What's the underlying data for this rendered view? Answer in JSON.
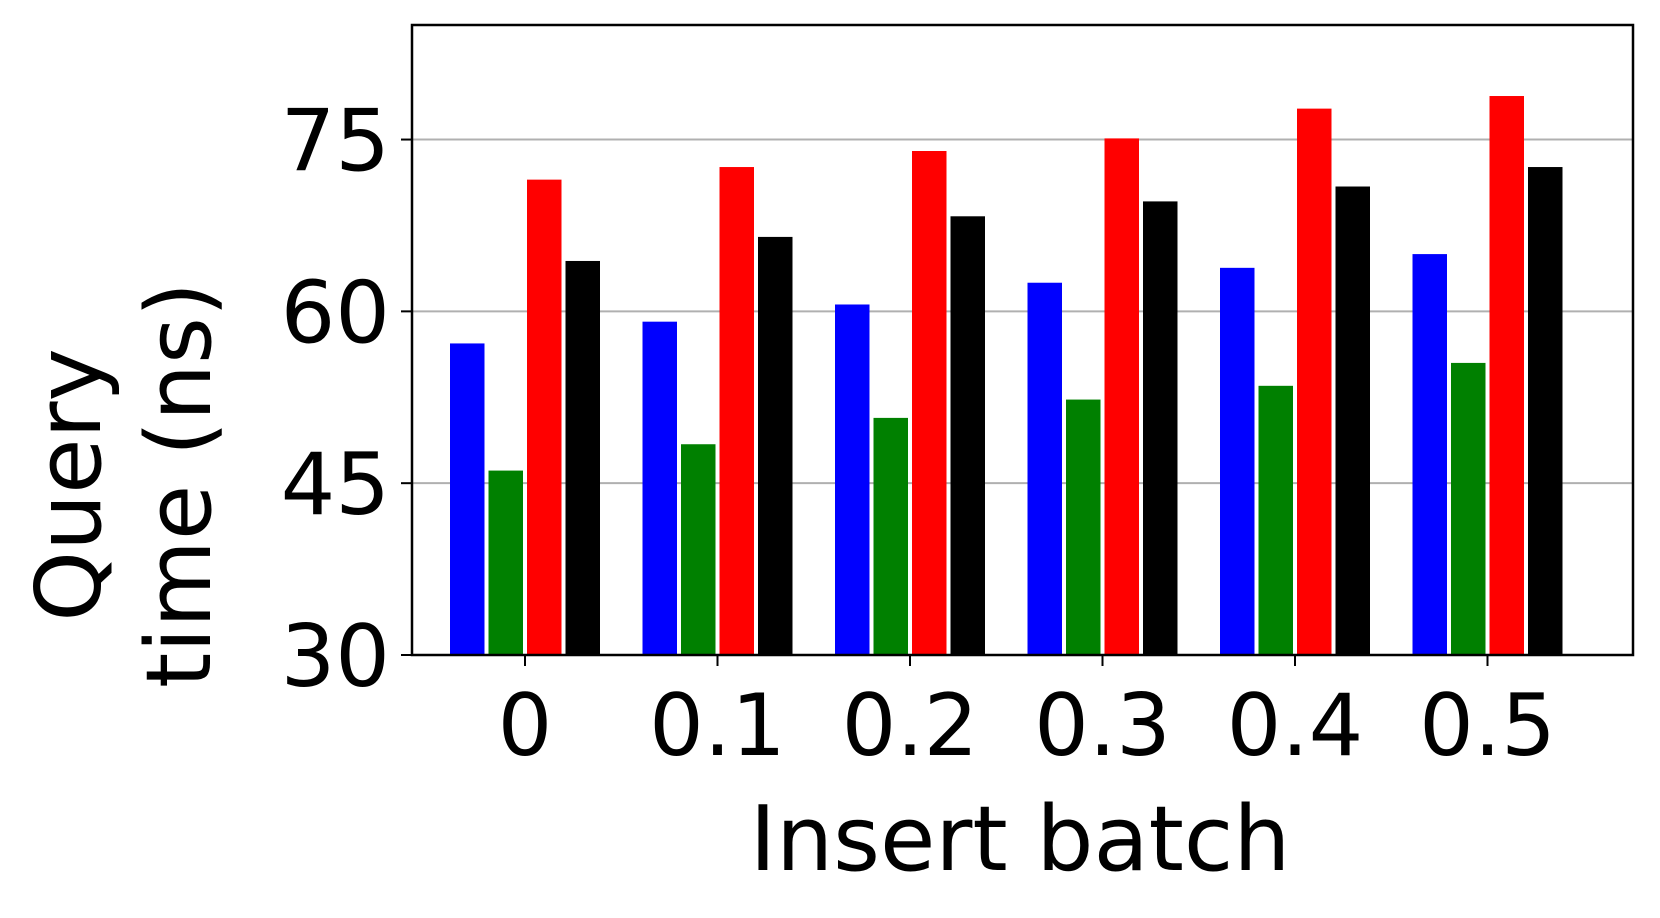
{
  "chart_data": {
    "type": "bar",
    "title": "",
    "xlabel": "Insert batch",
    "ylabel_lines": [
      "Query",
      "time (ns)"
    ],
    "categories": [
      "0",
      "0.1",
      "0.2",
      "0.3",
      "0.4",
      "0.5"
    ],
    "ylim": [
      30,
      85
    ],
    "yticks": [
      30,
      45,
      60,
      75
    ],
    "ytick_labels": [
      "30",
      "45",
      "60",
      "75"
    ],
    "grid": "y",
    "legend": "none",
    "series": [
      {
        "color": "#0000ff",
        "values": [
          57.2,
          59.1,
          60.6,
          62.5,
          63.8,
          65.0
        ]
      },
      {
        "color": "#008000",
        "values": [
          46.1,
          48.4,
          50.7,
          52.3,
          53.5,
          55.5
        ]
      },
      {
        "color": "#ff0000",
        "values": [
          71.5,
          72.6,
          74.0,
          75.1,
          77.7,
          78.8
        ]
      },
      {
        "color": "#000000",
        "values": [
          64.4,
          66.5,
          68.3,
          69.6,
          70.9,
          72.6
        ]
      }
    ]
  }
}
